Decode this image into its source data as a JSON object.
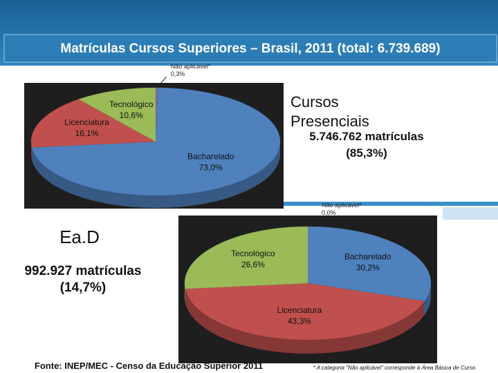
{
  "title": "Matrículas Cursos Superiores – Brasil, 2011  (total: 6.739.689)",
  "presencial": {
    "heading": "Cursos Presenciais",
    "detail": "5.746.762 matrículas",
    "share": "(85,3%)"
  },
  "ead": {
    "heading": "Ea.D",
    "detail": "992.927 matrículas",
    "share": "(14,7%)"
  },
  "chart_data": [
    {
      "type": "pie",
      "categories": [
        "Não aplicável*",
        "Bacharelado",
        "Licenciatura",
        "Tecnológico"
      ],
      "values": [
        0.3,
        73.0,
        16.1,
        10.6
      ],
      "value_labels": [
        "0,3%",
        "73,0%",
        "16,1%",
        "10,6%"
      ],
      "colors": [
        "#8064a2",
        "#4f81bd",
        "#c0504d",
        "#9bbb59"
      ]
    },
    {
      "type": "pie",
      "categories": [
        "Não aplicável*",
        "Bacharelado",
        "Licenciatura",
        "Tecnológico"
      ],
      "values": [
        0.0,
        30.2,
        43.3,
        26.6
      ],
      "value_labels": [
        "0,0%",
        "30,2%",
        "43,3%",
        "26,6%"
      ],
      "colors": [
        "#8064a2",
        "#4f81bd",
        "#c0504d",
        "#9bbb59"
      ]
    }
  ],
  "source": "Fonte: INEP/MEC - Censo da Educação Superior 2011",
  "footnote": "* A categoria \"Não aplicável\" corresponde à Área Básica de Curso"
}
